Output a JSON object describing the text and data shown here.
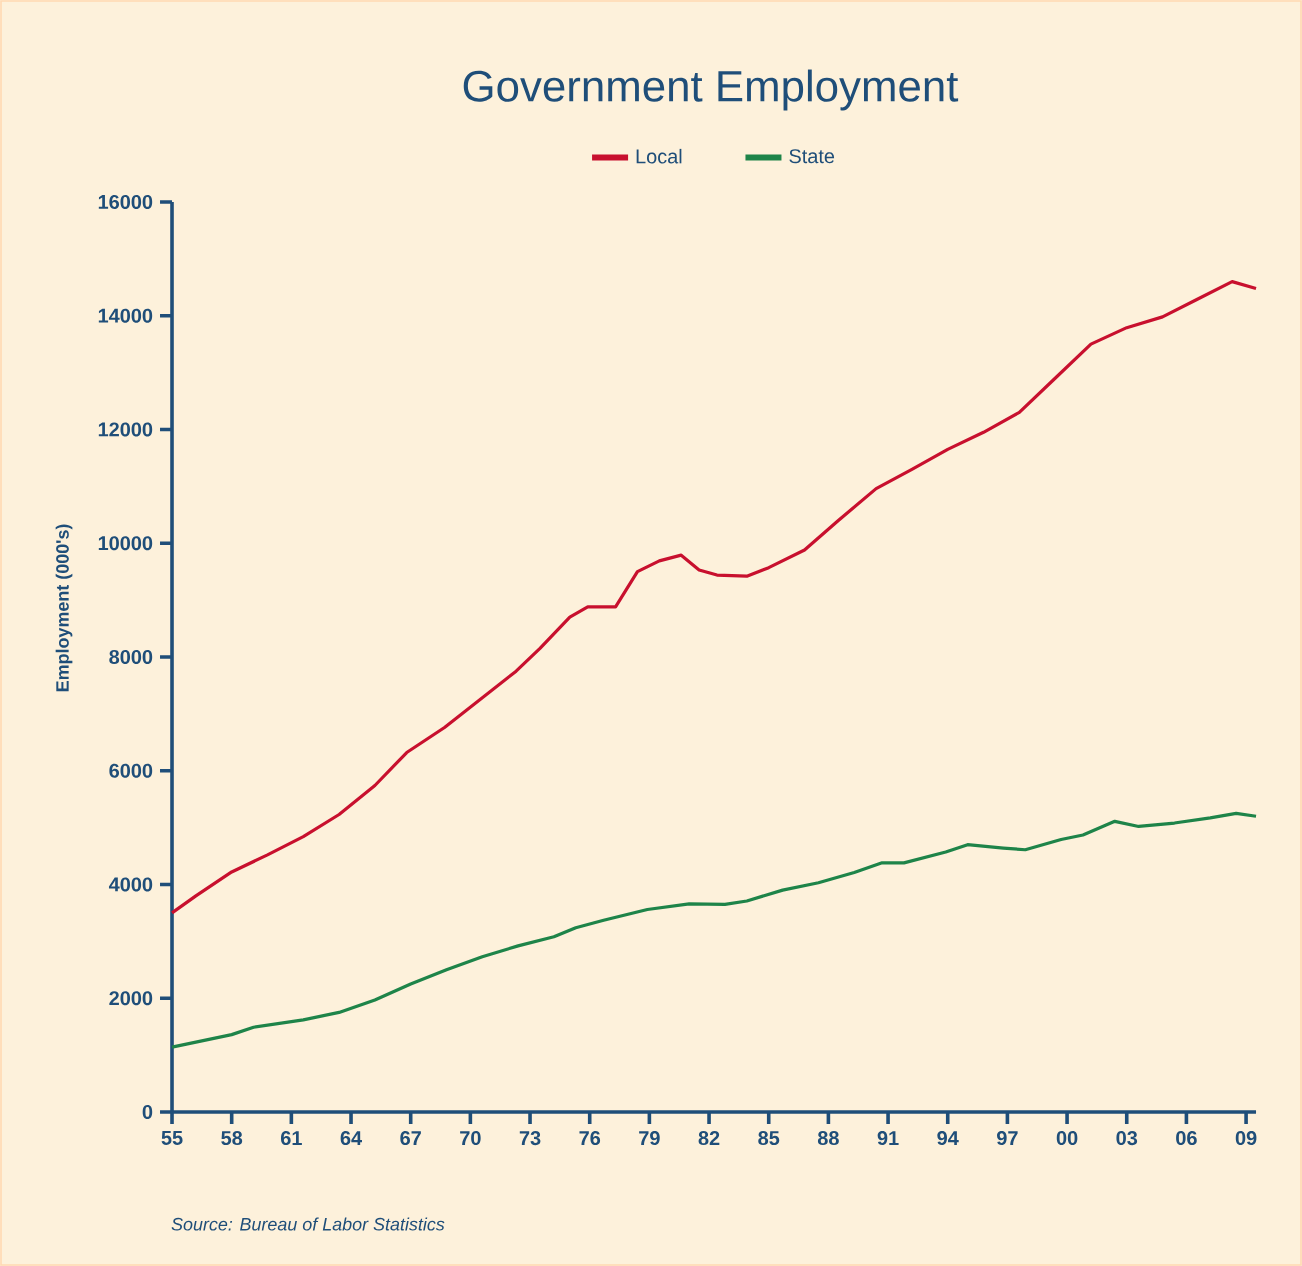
{
  "chart_data": {
    "type": "line",
    "title": "Government Employment",
    "ylabel": "Employment (000's)",
    "annotations": [
      "Source: Bureau of Labor Statistics"
    ],
    "xlim": [
      1955,
      2009.5
    ],
    "ylim": [
      0,
      16000
    ],
    "xticks": [
      {
        "value": 1955,
        "label": "55"
      },
      {
        "value": 1958,
        "label": "58"
      },
      {
        "value": 1961,
        "label": "61"
      },
      {
        "value": 1964,
        "label": "64"
      },
      {
        "value": 1967,
        "label": "67"
      },
      {
        "value": 1970,
        "label": "70"
      },
      {
        "value": 1973,
        "label": "73"
      },
      {
        "value": 1976,
        "label": "76"
      },
      {
        "value": 1979,
        "label": "79"
      },
      {
        "value": 1982,
        "label": "82"
      },
      {
        "value": 1985,
        "label": "85"
      },
      {
        "value": 1988,
        "label": "88"
      },
      {
        "value": 1991,
        "label": "91"
      },
      {
        "value": 1994,
        "label": "94"
      },
      {
        "value": 1997,
        "label": "97"
      },
      {
        "value": 2000,
        "label": "00"
      },
      {
        "value": 2003,
        "label": "03"
      },
      {
        "value": 2006,
        "label": "06"
      },
      {
        "value": 2009,
        "label": "09"
      }
    ],
    "yticks": [
      0,
      2000,
      4000,
      6000,
      8000,
      10000,
      12000,
      14000,
      16000
    ],
    "grid": false,
    "legend": "top",
    "marker": "none",
    "line_style": "solid",
    "series": [
      {
        "name": "Local",
        "color": "#c8102e",
        "x": [
          1955.0,
          1956.2,
          1958.0,
          1959.8,
          1961.6,
          1963.4,
          1965.2,
          1966.8,
          1968.7,
          1972.3,
          1973.5,
          1975.0,
          1975.9,
          1977.3,
          1978.4,
          1979.5,
          1980.6,
          1981.5,
          1982.4,
          1983.9,
          1985.0,
          1986.8,
          1988.5,
          1990.4,
          1992.2,
          1994.0,
          1995.8,
          1997.6,
          1999.4,
          2001.2,
          2003.0,
          2004.8,
          2006.5,
          2008.3,
          2009.5
        ],
        "values": [
          3500,
          3800,
          4220,
          4520,
          4840,
          5230,
          5740,
          6320,
          6760,
          7750,
          8150,
          8700,
          8880,
          8880,
          9500,
          9690,
          9790,
          9530,
          9440,
          9420,
          9570,
          9880,
          10400,
          10960,
          11300,
          11650,
          11950,
          12300,
          12900,
          13500,
          13790,
          13980,
          14280,
          14600,
          14480
        ]
      },
      {
        "name": "State",
        "color": "#1e8449",
        "x": [
          1955.0,
          1958.0,
          1959.1,
          1961.6,
          1963.4,
          1965.2,
          1967.0,
          1968.8,
          1970.6,
          1972.4,
          1974.2,
          1975.3,
          1976.7,
          1978.9,
          1981.0,
          1982.8,
          1983.9,
          1985.7,
          1987.5,
          1989.3,
          1990.7,
          1991.8,
          1993.9,
          1995.0,
          1996.8,
          1997.9,
          1999.7,
          2000.8,
          2002.4,
          2003.6,
          2005.4,
          2007.2,
          2008.5,
          2009.5
        ],
        "values": [
          1140,
          1360,
          1490,
          1620,
          1750,
          1970,
          2250,
          2500,
          2730,
          2920,
          3080,
          3240,
          3370,
          3560,
          3660,
          3650,
          3710,
          3900,
          4030,
          4210,
          4380,
          4380,
          4570,
          4700,
          4640,
          4610,
          4790,
          4870,
          5110,
          5020,
          5080,
          5170,
          5250,
          5200
        ]
      }
    ]
  }
}
